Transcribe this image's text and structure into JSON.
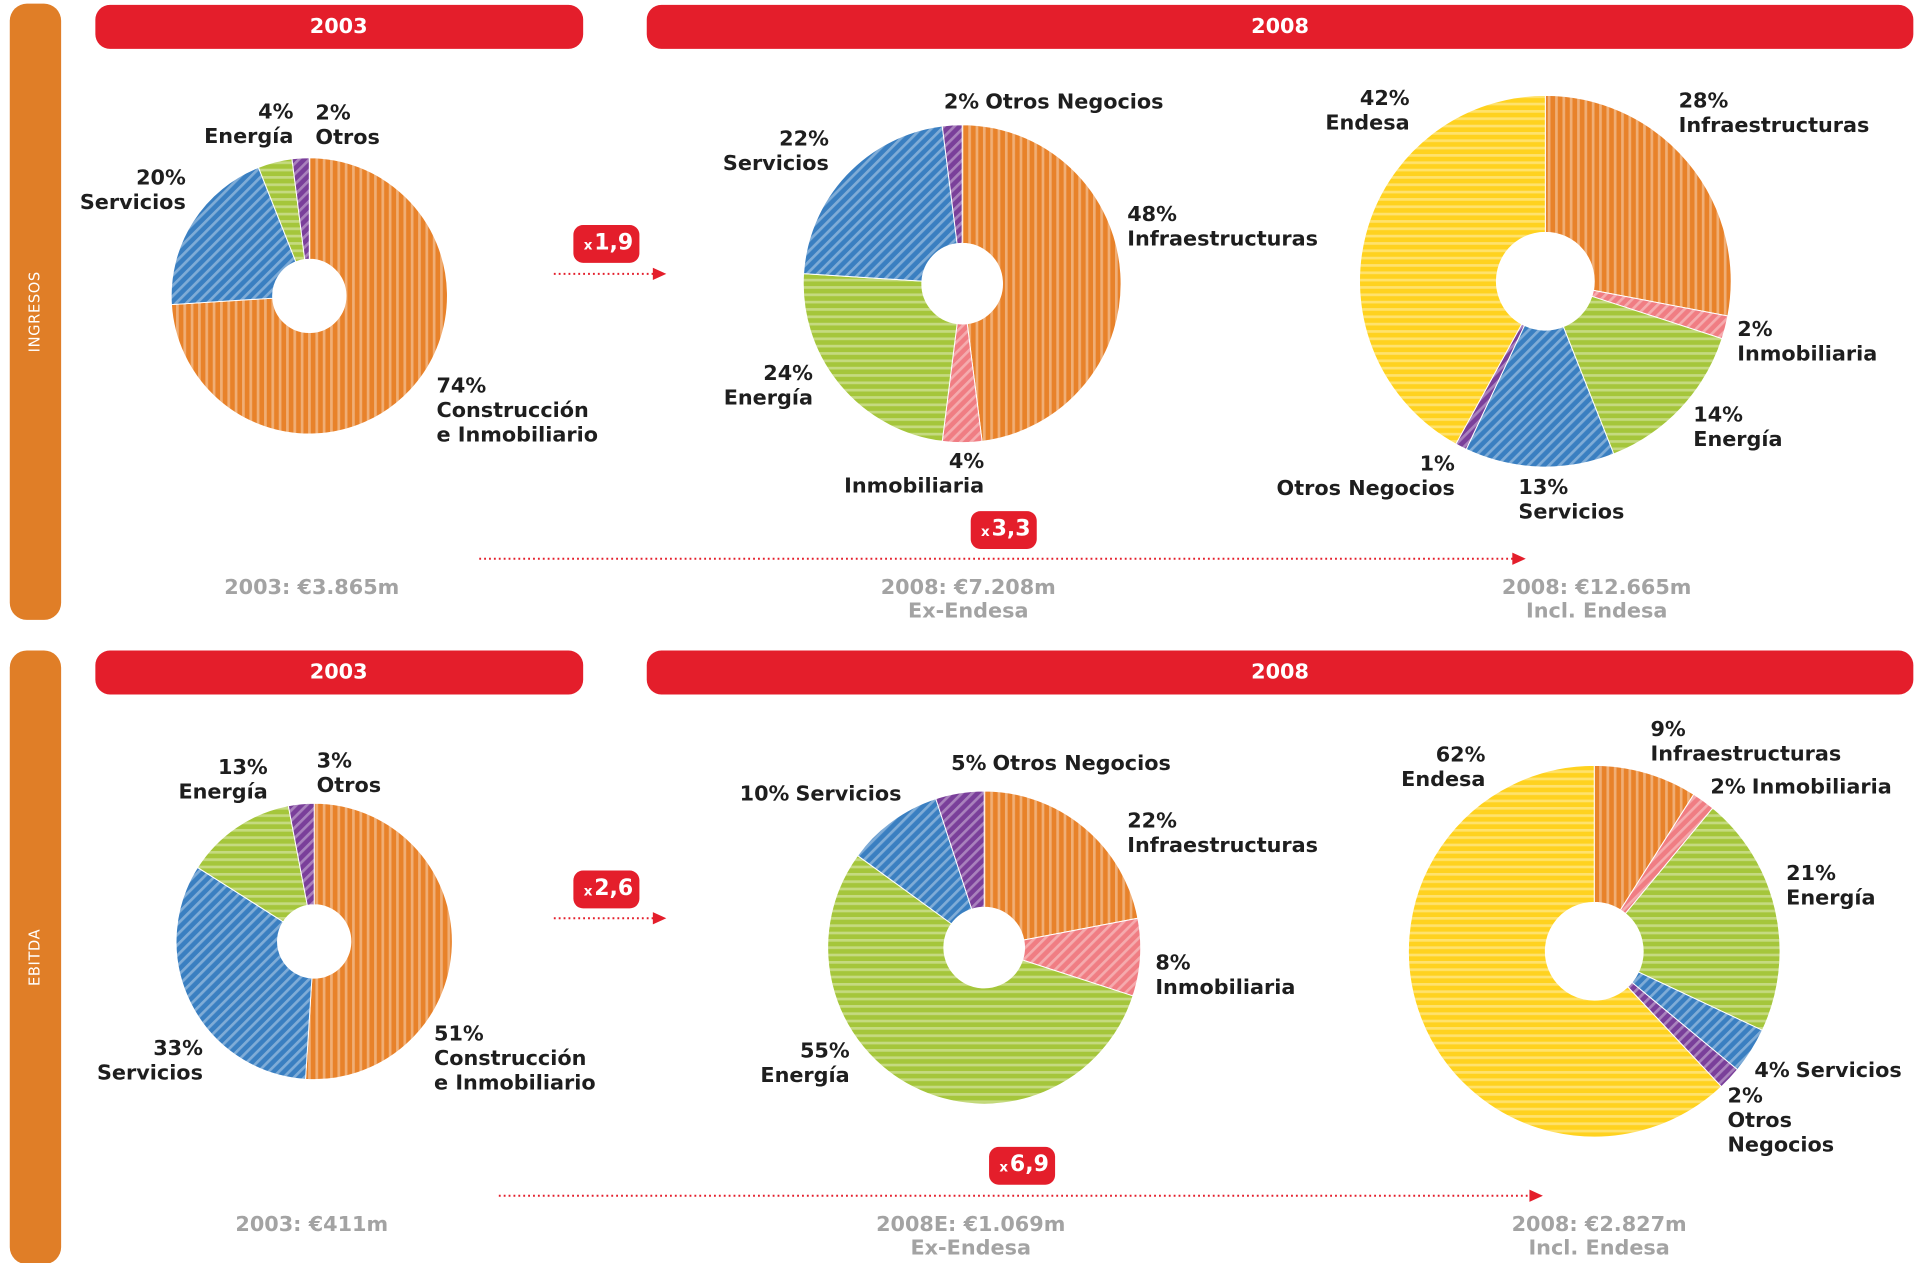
{
  "sections": [
    {
      "label": "INGRESOS",
      "headers": [
        "2003",
        "2008"
      ],
      "multiplier_prefix": "x",
      "multipliers": [
        "1,9",
        "3,3"
      ],
      "totals": [
        [
          "2003: €3.865m"
        ],
        [
          "2008: €7.208m",
          "Ex-Endesa"
        ],
        [
          "2008: €12.665m",
          "Incl. Endesa"
        ]
      ]
    },
    {
      "label": "EBITDA",
      "headers": [
        "2003",
        "2008"
      ],
      "multiplier_prefix": "x",
      "multipliers": [
        "2,6",
        "6,9"
      ],
      "totals": [
        [
          "2003: €411m"
        ],
        [
          "2008E: €1.069m",
          "Ex-Endesa"
        ],
        [
          "2008: €2.827m",
          "Incl. Endesa"
        ]
      ]
    }
  ],
  "chart_data": [
    {
      "type": "pie",
      "donut": true,
      "categories": [
        "Construcción e Inmobiliario",
        "Servicios",
        "Energía",
        "Otros"
      ],
      "values": [
        74,
        20,
        4,
        2
      ],
      "value_labels": [
        "74%",
        "20%",
        "4%",
        "2%"
      ],
      "colors": [
        "#e8822a",
        "#3a7fc1",
        "#a5c63b",
        "#7a3f9a"
      ]
    },
    {
      "type": "pie",
      "donut": true,
      "categories": [
        "Infraestructuras",
        "Inmobiliaria",
        "Energía",
        "Servicios",
        "Otros Negocios"
      ],
      "values": [
        48,
        4,
        24,
        22,
        2
      ],
      "value_labels": [
        "48%",
        "4%",
        "24%",
        "22%",
        "2%"
      ],
      "colors": [
        "#e8822a",
        "#f07d83",
        "#a5c63b",
        "#3a7fc1",
        "#7a3f9a"
      ]
    },
    {
      "type": "pie",
      "donut": true,
      "categories": [
        "Infraestructuras",
        "Inmobiliaria",
        "Energía",
        "Servicios",
        "Otros Negocios",
        "Endesa"
      ],
      "values": [
        28,
        2,
        14,
        13,
        1,
        42
      ],
      "value_labels": [
        "28%",
        "2%",
        "14%",
        "13%",
        "1%",
        "42%"
      ],
      "colors": [
        "#e8822a",
        "#f07d83",
        "#a5c63b",
        "#3a7fc1",
        "#7a3f9a",
        "#ffd21f"
      ]
    },
    {
      "type": "pie",
      "donut": true,
      "categories": [
        "Construcción e Inmobiliario",
        "Servicios",
        "Energía",
        "Otros"
      ],
      "values": [
        51,
        33,
        13,
        3
      ],
      "value_labels": [
        "51%",
        "33%",
        "13%",
        "3%"
      ],
      "colors": [
        "#e8822a",
        "#3a7fc1",
        "#a5c63b",
        "#7a3f9a"
      ]
    },
    {
      "type": "pie",
      "donut": true,
      "categories": [
        "Infraestructuras",
        "Inmobiliaria",
        "Energía",
        "Servicios",
        "Otros Negocios"
      ],
      "values": [
        22,
        8,
        55,
        10,
        5
      ],
      "value_labels": [
        "22%",
        "8%",
        "55%",
        "10%",
        "5%"
      ],
      "colors": [
        "#e8822a",
        "#f07d83",
        "#a5c63b",
        "#3a7fc1",
        "#7a3f9a"
      ]
    },
    {
      "type": "pie",
      "donut": true,
      "categories": [
        "Infraestructuras",
        "Inmobiliaria",
        "Energía",
        "Servicios",
        "Otros Negocios",
        "Endesa"
      ],
      "values": [
        9,
        2,
        21,
        4,
        2,
        62
      ],
      "value_labels": [
        "9%",
        "2%",
        "21%",
        "4%",
        "2%",
        "62%"
      ],
      "colors": [
        "#e8822a",
        "#f07d83",
        "#a5c63b",
        "#3a7fc1",
        "#7a3f9a",
        "#ffd21f"
      ]
    }
  ]
}
